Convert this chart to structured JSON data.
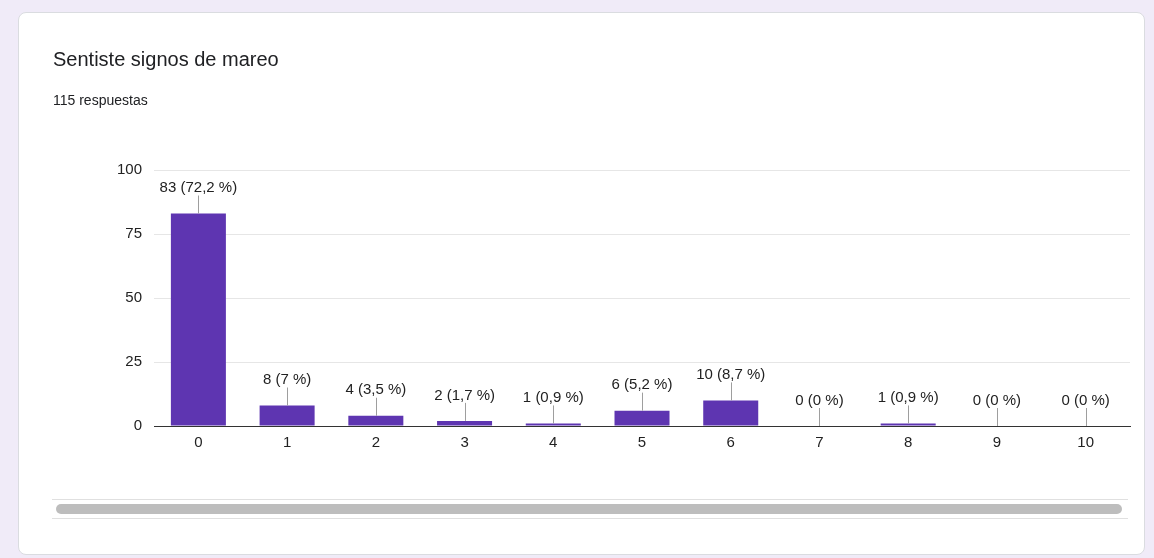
{
  "chart_data": {
    "type": "bar",
    "title": "Sentiste signos de mareo",
    "subtitle": "115 respuestas",
    "categories": [
      "0",
      "1",
      "2",
      "3",
      "4",
      "5",
      "6",
      "7",
      "8",
      "9",
      "10"
    ],
    "values": [
      83,
      8,
      4,
      2,
      1,
      6,
      10,
      0,
      1,
      0,
      0
    ],
    "value_labels": [
      "83 (72,2 %)",
      "8 (7 %)",
      "4 (3,5 %)",
      "2 (1,7 %)",
      "1 (0,9 %)",
      "6 (5,2 %)",
      "10 (8,7 %)",
      "0 (0 %)",
      "1 (0,9 %)",
      "0 (0 %)",
      "0 (0 %)"
    ],
    "color": "#5e35b1",
    "ylim": [
      0,
      100
    ],
    "yticks": [
      0,
      25,
      50,
      75,
      100
    ],
    "grid": "y"
  }
}
